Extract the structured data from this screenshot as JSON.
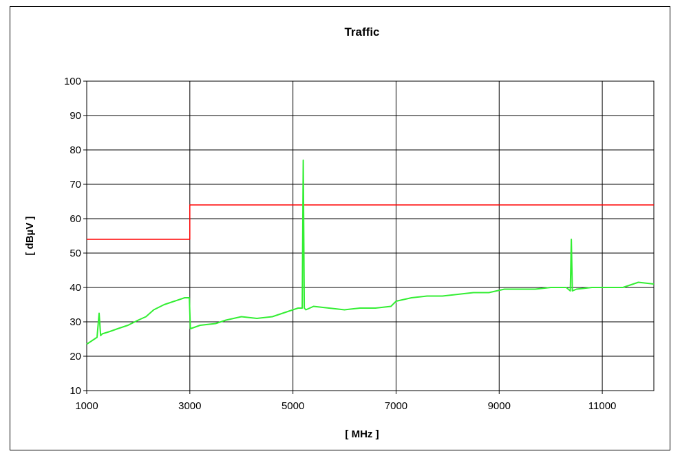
{
  "chart_data": {
    "type": "line",
    "title": "Traffic",
    "xlabel": "[ MHz ]",
    "ylabel": "[ dBµV ]",
    "xlim": [
      1000,
      12000
    ],
    "ylim": [
      10,
      100
    ],
    "xticks": [
      1000,
      3000,
      5000,
      7000,
      9000,
      11000
    ],
    "yticks": [
      10,
      20,
      30,
      40,
      50,
      60,
      70,
      80,
      90,
      100
    ],
    "grid": true,
    "legend": "none",
    "series": [
      {
        "color": "#ff0000",
        "step": true,
        "x": [
          1000,
          3000,
          3000,
          12000
        ],
        "y": [
          54,
          54,
          64,
          64
        ]
      },
      {
        "color": "#33ee33",
        "x": [
          1000,
          1100,
          1200,
          1240,
          1270,
          1300,
          1450,
          1600,
          1800,
          2000,
          2150,
          2300,
          2500,
          2700,
          2900,
          2990,
          3010,
          3200,
          3500,
          3700,
          4000,
          4300,
          4600,
          4900,
          5100,
          5180,
          5200,
          5220,
          5250,
          5400,
          5700,
          6000,
          6300,
          6600,
          6900,
          7000,
          7300,
          7600,
          7900,
          8200,
          8500,
          8800,
          9100,
          9400,
          9700,
          10000,
          10300,
          10380,
          10400,
          10420,
          10500,
          10800,
          11100,
          11400,
          11700,
          12000
        ],
        "y": [
          23.5,
          24.5,
          25.5,
          32.5,
          26,
          26.5,
          27.2,
          28,
          29,
          30.5,
          31.5,
          33.5,
          35,
          36,
          37,
          37,
          28,
          29,
          29.5,
          30.5,
          31.5,
          31,
          31.5,
          33,
          34,
          34,
          77,
          34,
          33.5,
          34.5,
          34,
          33.5,
          34,
          34,
          34.5,
          36,
          37,
          37.5,
          37.5,
          38,
          38.5,
          38.5,
          39.5,
          39.5,
          39.5,
          40,
          40,
          39,
          54,
          39,
          39.5,
          40,
          40,
          40,
          41.5,
          41
        ]
      }
    ]
  }
}
